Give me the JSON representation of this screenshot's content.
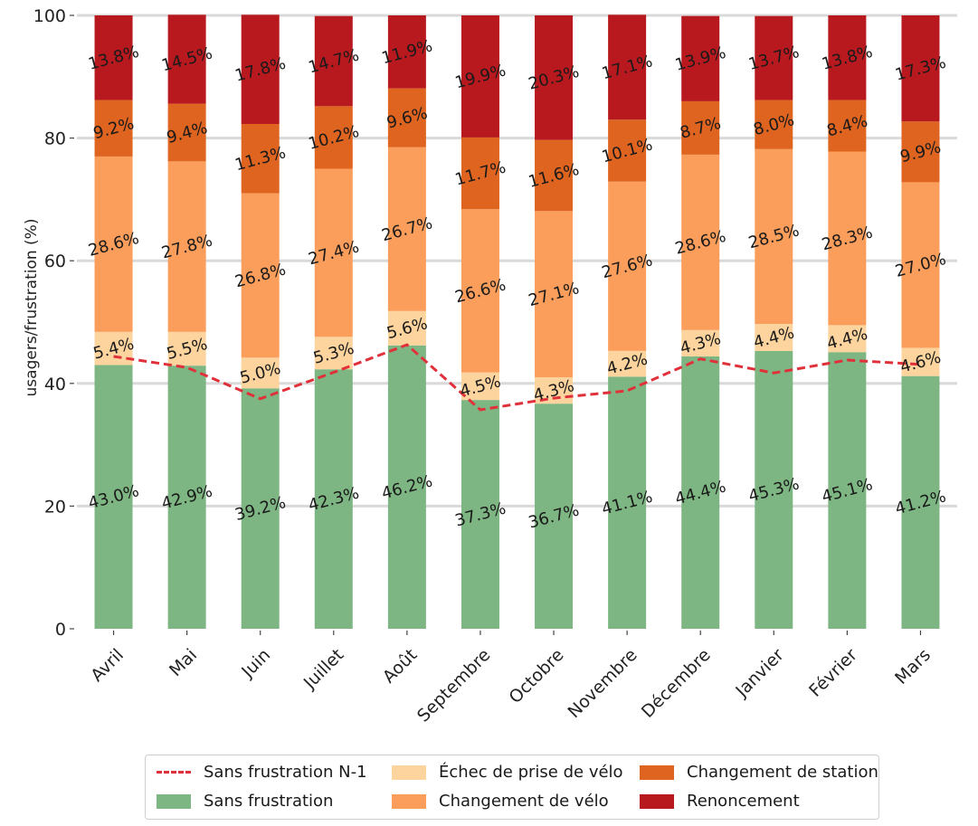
{
  "chart_data": {
    "type": "bar",
    "stacked": true,
    "title": "",
    "xlabel": "",
    "ylabel": "usagers/frustration (%)",
    "ylim": [
      0,
      100
    ],
    "yticks": [
      0,
      20,
      40,
      60,
      80,
      100
    ],
    "grid": "horizontal",
    "legend_position": "bottom",
    "categories": [
      "Avril",
      "Mai",
      "Juin",
      "Juillet",
      "Août",
      "Septembre",
      "Octobre",
      "Novembre",
      "Décembre",
      "Janvier",
      "Février",
      "Mars"
    ],
    "series": [
      {
        "name": "Sans frustration",
        "color": "#7db682",
        "values": [
          43.0,
          42.9,
          39.2,
          42.3,
          46.2,
          37.3,
          36.7,
          41.1,
          44.4,
          45.3,
          45.1,
          41.2
        ],
        "labels": [
          "43.0%",
          "42.9%",
          "39.2%",
          "42.3%",
          "46.2%",
          "37.3%",
          "36.7%",
          "41.1%",
          "44.4%",
          "45.3%",
          "45.1%",
          "41.2%"
        ]
      },
      {
        "name": "Échec de prise de vélo",
        "color": "#fdd49e",
        "values": [
          5.4,
          5.5,
          5.0,
          5.3,
          5.6,
          4.5,
          4.3,
          4.2,
          4.3,
          4.4,
          4.4,
          4.6
        ],
        "labels": [
          "5.4%",
          "5.5%",
          "5.0%",
          "5.3%",
          "5.6%",
          "4.5%",
          "4.3%",
          "4.2%",
          "4.3%",
          "4.4%",
          "4.4%",
          "4.6%"
        ]
      },
      {
        "name": "Changement de vélo",
        "color": "#fc9e5b",
        "values": [
          28.6,
          27.8,
          26.8,
          27.4,
          26.7,
          26.6,
          27.1,
          27.6,
          28.6,
          28.5,
          28.3,
          27.0
        ],
        "labels": [
          "28.6%",
          "27.8%",
          "26.8%",
          "27.4%",
          "26.7%",
          "26.6%",
          "27.1%",
          "27.6%",
          "28.6%",
          "28.5%",
          "28.3%",
          "27.0%"
        ]
      },
      {
        "name": "Changement de station",
        "color": "#de6420",
        "values": [
          9.2,
          9.4,
          11.3,
          10.2,
          9.6,
          11.7,
          11.6,
          10.1,
          8.7,
          8.0,
          8.4,
          9.9
        ],
        "labels": [
          "9.2%",
          "9.4%",
          "11.3%",
          "10.2%",
          "9.6%",
          "11.7%",
          "11.6%",
          "10.1%",
          "8.7%",
          "8.0%",
          "8.4%",
          "9.9%"
        ]
      },
      {
        "name": "Renoncement",
        "color": "#b8191f",
        "values": [
          13.8,
          14.5,
          17.8,
          14.7,
          11.9,
          19.9,
          20.3,
          17.1,
          13.9,
          13.7,
          13.8,
          17.3
        ],
        "labels": [
          "13.8%",
          "14.5%",
          "17.8%",
          "14.7%",
          "11.9%",
          "19.9%",
          "20.3%",
          "17.1%",
          "13.9%",
          "13.7%",
          "13.8%",
          "17.3%"
        ]
      }
    ],
    "line_series": {
      "name": "Sans frustration N-1",
      "color": "#e0303a",
      "style": "dashed",
      "values": [
        44.4,
        42.6,
        37.5,
        41.8,
        46.3,
        35.7,
        37.6,
        38.8,
        44.0,
        41.7,
        43.8,
        43.1
      ]
    }
  },
  "legend": {
    "items": [
      {
        "label": "Sans frustration N-1",
        "kind": "line",
        "color": "#e0303a"
      },
      {
        "label": "Sans frustration",
        "kind": "swatch",
        "color": "#7db682"
      },
      {
        "label": "Échec de prise de vélo",
        "kind": "swatch",
        "color": "#fdd49e"
      },
      {
        "label": "Changement de vélo",
        "kind": "swatch",
        "color": "#fc9e5b"
      },
      {
        "label": "Changement de station",
        "kind": "swatch",
        "color": "#de6420"
      },
      {
        "label": "Renoncement",
        "kind": "swatch",
        "color": "#b8191f"
      }
    ]
  }
}
